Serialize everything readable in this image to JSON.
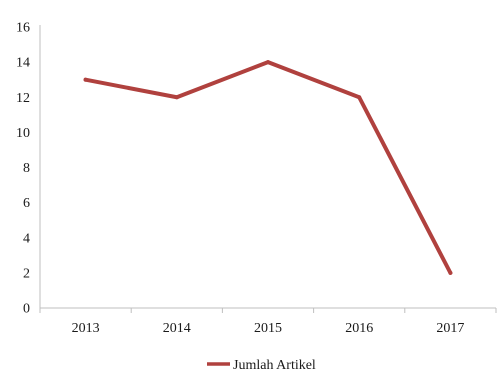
{
  "chart_data": {
    "type": "line",
    "categories": [
      "2013",
      "2014",
      "2015",
      "2016",
      "2017"
    ],
    "series": [
      {
        "name": "Jumlah Artikel",
        "values": [
          13,
          12,
          14,
          12,
          2
        ],
        "color": "#b0413e"
      }
    ],
    "y_ticks": [
      "0",
      "2",
      "4",
      "6",
      "8",
      "10",
      "12",
      "14",
      "16"
    ],
    "ylim": [
      0,
      16
    ],
    "grid": false,
    "legend_position": "bottom"
  }
}
